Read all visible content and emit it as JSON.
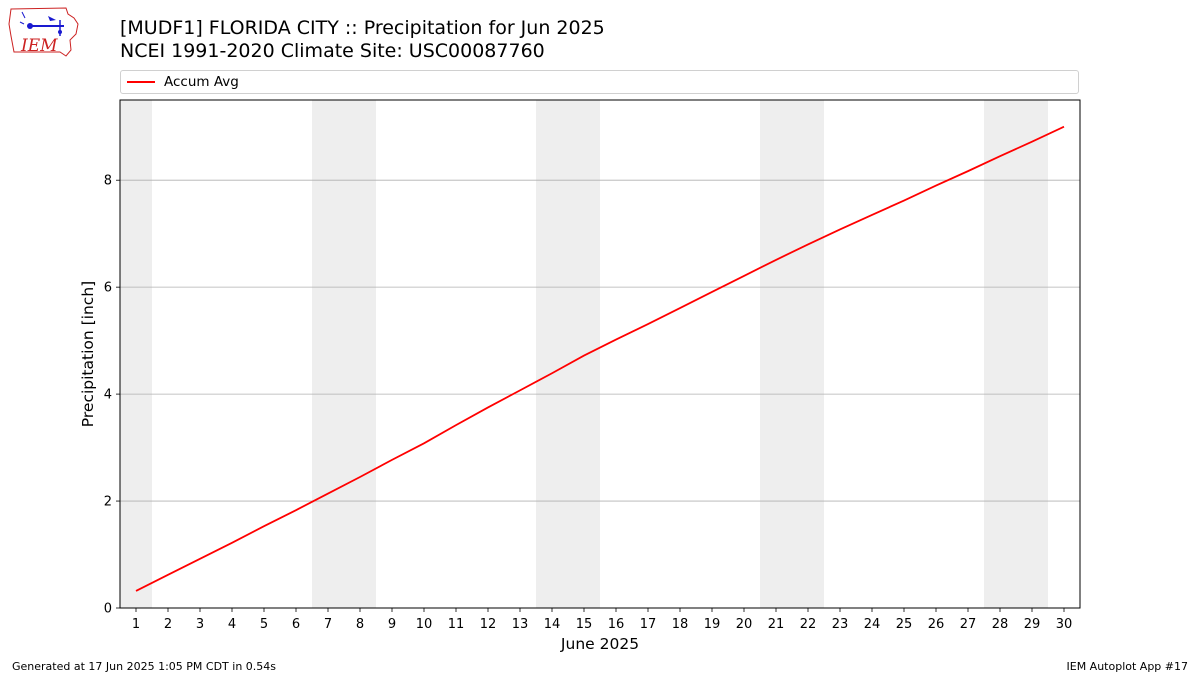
{
  "header": {
    "title_line1": "[MUDF1] FLORIDA CITY :: Precipitation for Jun 2025",
    "title_line2": "NCEI 1991-2020 Climate Site: USC00087760"
  },
  "logo": {
    "text": "IEM",
    "icon": "iem-iowa-logo",
    "color": "#cc2222",
    "accent": "#1a1ad0"
  },
  "legend": {
    "placement": "top",
    "entries": [
      {
        "label": "Accum Avg",
        "color": "#ff0000"
      }
    ]
  },
  "footer": {
    "left": "Generated at 17 Jun 2025 1:05 PM CDT in 0.54s",
    "right": "IEM Autoplot App #17"
  },
  "chart_data": {
    "type": "line",
    "title": "[MUDF1] FLORIDA CITY :: Precipitation for Jun 2025",
    "subtitle": "NCEI 1991-2020 Climate Site: USC00087760",
    "xlabel": "June 2025",
    "ylabel": "Precipitation [inch]",
    "xlim": [
      0.5,
      30.5
    ],
    "ylim": [
      0,
      9.5
    ],
    "x": [
      1,
      2,
      3,
      4,
      5,
      6,
      7,
      8,
      9,
      10,
      11,
      12,
      13,
      14,
      15,
      16,
      17,
      18,
      19,
      20,
      21,
      22,
      23,
      24,
      25,
      26,
      27,
      28,
      29,
      30
    ],
    "xticks": [
      "1",
      "2",
      "3",
      "4",
      "5",
      "6",
      "7",
      "8",
      "9",
      "10",
      "11",
      "12",
      "13",
      "14",
      "15",
      "16",
      "17",
      "18",
      "19",
      "20",
      "21",
      "22",
      "23",
      "24",
      "25",
      "26",
      "27",
      "28",
      "29",
      "30"
    ],
    "yticks": [
      0,
      2,
      4,
      6,
      8
    ],
    "grid": "horizontal",
    "weekend_shading": [
      [
        0.5,
        1.5
      ],
      [
        6.5,
        8.5
      ],
      [
        13.5,
        15.5
      ],
      [
        20.5,
        22.5
      ],
      [
        27.5,
        29.5
      ]
    ],
    "shading_color": "#eeeeee",
    "series": [
      {
        "name": "Accum Avg",
        "color": "#ff0000",
        "values": [
          0.32,
          0.62,
          0.92,
          1.22,
          1.53,
          1.83,
          2.14,
          2.45,
          2.77,
          3.08,
          3.42,
          3.75,
          4.07,
          4.39,
          4.72,
          5.02,
          5.31,
          5.61,
          5.91,
          6.21,
          6.51,
          6.8,
          7.08,
          7.35,
          7.62,
          7.9,
          8.17,
          8.45,
          8.72,
          9.0
        ]
      }
    ]
  }
}
